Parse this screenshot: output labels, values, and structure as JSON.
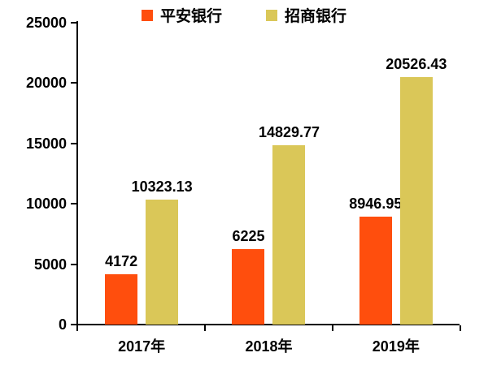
{
  "chart_data": {
    "type": "bar",
    "title": "",
    "categories": [
      "2017年",
      "2018年",
      "2019年"
    ],
    "series": [
      {
        "name": "平安银行",
        "color": "#FF4E0D",
        "values": [
          4172,
          6225,
          8946.95
        ],
        "labels": [
          "4172",
          "6225",
          "8946.95"
        ]
      },
      {
        "name": "招商银行",
        "color": "#DAC758",
        "values": [
          10323.13,
          14829.77,
          20526.43
        ],
        "labels": [
          "10323.13",
          "14829.77",
          "20526.43"
        ]
      }
    ],
    "xlabel": "",
    "ylabel": "",
    "ylim": [
      0,
      25000
    ],
    "yticks": [
      0,
      5000,
      10000,
      15000,
      20000,
      25000
    ],
    "grid": false,
    "legend_position": "top",
    "background": "#ffffff",
    "axis_color": "#000000",
    "text_color": "#000000"
  }
}
